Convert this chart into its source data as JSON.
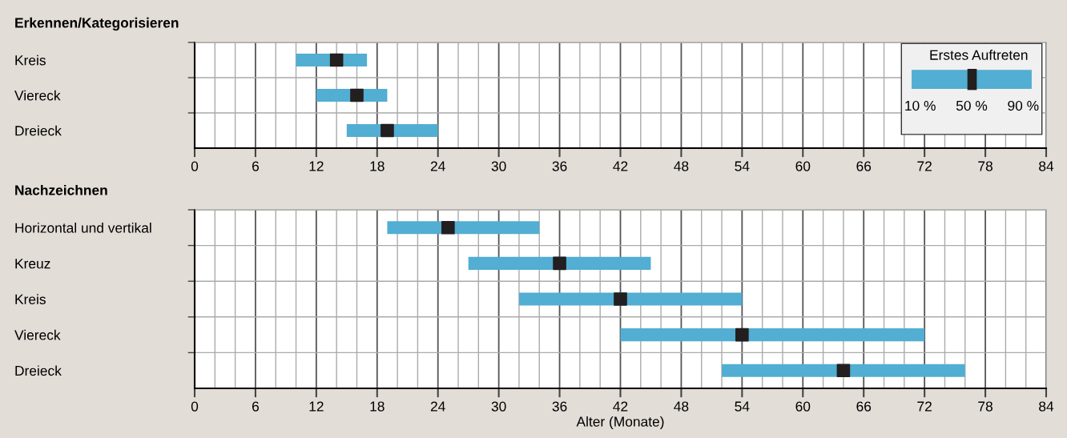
{
  "chart_data": [
    {
      "type": "bar",
      "orientation": "horizontal",
      "title": "Erkennen/Kategorisieren",
      "categories": [
        "Kreis",
        "Viereck",
        "Dreieck"
      ],
      "series": [
        {
          "color": "#52aed2",
          "base": [
            10,
            12,
            15
          ],
          "values": [
            7,
            7,
            9
          ]
        },
        {
          "type": "scatter",
          "marker": "square",
          "color": "#231f20",
          "values": [
            14,
            16,
            19
          ]
        }
      ],
      "xlim": [
        0,
        84
      ],
      "xticks": [
        0,
        {
          "value": 2,
          "label": null
        },
        {
          "value": 4,
          "label": null
        },
        6,
        {
          "value": 8,
          "label": null
        },
        {
          "value": 10,
          "label": null
        },
        12,
        {
          "value": 14,
          "label": null
        },
        {
          "value": 16,
          "label": null
        },
        18,
        {
          "value": 20,
          "label": null
        },
        {
          "value": 22,
          "label": null
        },
        24,
        {
          "value": 26,
          "label": null
        },
        {
          "value": 28,
          "label": null
        },
        30,
        {
          "value": 32,
          "label": null
        },
        {
          "value": 34,
          "label": null
        },
        36,
        {
          "value": 38,
          "label": null
        },
        {
          "value": 40,
          "label": null
        },
        42,
        {
          "value": 44,
          "label": null
        },
        {
          "value": 46,
          "label": null
        },
        48,
        {
          "value": 50,
          "label": null
        },
        {
          "value": 52,
          "label": null
        },
        54,
        {
          "value": 56,
          "label": null
        },
        {
          "value": 58,
          "label": null
        },
        60,
        {
          "value": 62,
          "label": null
        },
        {
          "value": 64,
          "label": null
        },
        66,
        {
          "value": 68,
          "label": null
        },
        {
          "value": 70,
          "label": null
        },
        72,
        {
          "value": 74,
          "label": null
        },
        {
          "value": 76,
          "label": null
        },
        78,
        {
          "value": 80,
          "label": null
        },
        {
          "value": 82,
          "label": null
        },
        84
      ],
      "grid": true,
      "legend_title": "Erstes Auftreten",
      "annotations": [
        "10 %",
        "50 %",
        "90 %"
      ]
    },
    {
      "type": "bar",
      "orientation": "horizontal",
      "title": "Nachzeichnen",
      "xlabel": "Alter (Monate)",
      "categories": [
        "Horizontal und vertikal",
        "Kreuz",
        "Kreis",
        "Viereck",
        "Dreieck"
      ],
      "series": [
        {
          "color": "#52aed2",
          "base": [
            19,
            27,
            32,
            42,
            52
          ],
          "values": [
            15,
            18,
            22,
            30,
            24
          ]
        },
        {
          "type": "scatter",
          "marker": "square",
          "color": "#231f20",
          "values": [
            25,
            36,
            42,
            54,
            64
          ]
        }
      ],
      "xlim": [
        0,
        84
      ],
      "xticks": [
        0,
        {
          "value": 2,
          "label": null
        },
        {
          "value": 4,
          "label": null
        },
        6,
        {
          "value": 8,
          "label": null
        },
        {
          "value": 10,
          "label": null
        },
        12,
        {
          "value": 14,
          "label": null
        },
        {
          "value": 16,
          "label": null
        },
        18,
        {
          "value": 20,
          "label": null
        },
        {
          "value": 22,
          "label": null
        },
        24,
        {
          "value": 26,
          "label": null
        },
        {
          "value": 28,
          "label": null
        },
        30,
        {
          "value": 32,
          "label": null
        },
        {
          "value": 34,
          "label": null
        },
        36,
        {
          "value": 38,
          "label": null
        },
        {
          "value": 40,
          "label": null
        },
        42,
        {
          "value": 44,
          "label": null
        },
        {
          "value": 46,
          "label": null
        },
        48,
        {
          "value": 50,
          "label": null
        },
        {
          "value": 52,
          "label": null
        },
        54,
        {
          "value": 56,
          "label": null
        },
        {
          "value": 58,
          "label": null
        },
        60,
        {
          "value": 62,
          "label": null
        },
        {
          "value": 64,
          "label": null
        },
        66,
        {
          "value": 68,
          "label": null
        },
        {
          "value": 70,
          "label": null
        },
        72,
        {
          "value": 74,
          "label": null
        },
        {
          "value": 76,
          "label": null
        },
        78,
        {
          "value": 80,
          "label": null
        },
        {
          "value": 82,
          "label": null
        },
        84
      ],
      "grid": true
    }
  ]
}
